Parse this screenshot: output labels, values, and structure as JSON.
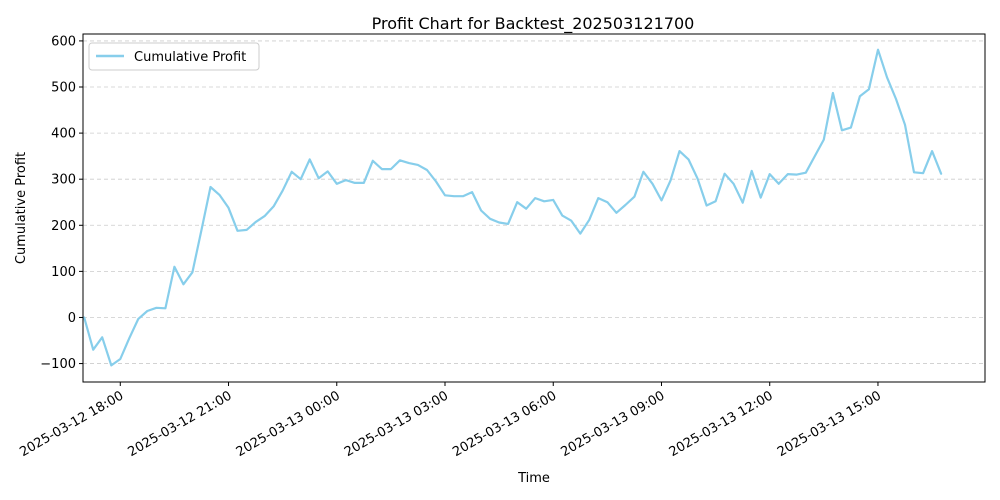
{
  "chart_data": {
    "type": "line",
    "title": "Profit Chart for Backtest_202503121700",
    "xlabel": "Time",
    "ylabel": "Cumulative Profit",
    "ylim": [
      -140,
      615
    ],
    "yticks": [
      -100,
      0,
      100,
      200,
      300,
      400,
      500,
      600
    ],
    "xlim": [
      "2025-03-12 16:58",
      "2025-03-13 17:58"
    ],
    "xticks": [
      "2025-03-12 18:00",
      "2025-03-12 21:00",
      "2025-03-13 00:00",
      "2025-03-13 03:00",
      "2025-03-13 06:00",
      "2025-03-13 09:00",
      "2025-03-13 12:00",
      "2025-03-13 15:00"
    ],
    "grid": "y-dashed",
    "legend_position": "top-left",
    "colors": {
      "line": "#87ceeb",
      "grid": "#cccccc",
      "axes": "#000000"
    },
    "series": [
      {
        "name": "Cumulative Profit",
        "x": [
          "2025-03-12 17:00",
          "2025-03-12 17:15",
          "2025-03-12 17:30",
          "2025-03-12 17:45",
          "2025-03-12 18:00",
          "2025-03-12 18:15",
          "2025-03-12 18:30",
          "2025-03-12 18:45",
          "2025-03-12 19:00",
          "2025-03-12 19:15",
          "2025-03-12 19:30",
          "2025-03-12 19:45",
          "2025-03-12 20:00",
          "2025-03-12 20:15",
          "2025-03-12 20:30",
          "2025-03-12 20:45",
          "2025-03-12 21:00",
          "2025-03-12 21:15",
          "2025-03-12 21:30",
          "2025-03-12 21:45",
          "2025-03-12 22:00",
          "2025-03-12 22:15",
          "2025-03-12 22:30",
          "2025-03-12 22:45",
          "2025-03-12 23:00",
          "2025-03-12 23:15",
          "2025-03-12 23:30",
          "2025-03-12 23:45",
          "2025-03-13 00:00",
          "2025-03-13 00:15",
          "2025-03-13 00:30",
          "2025-03-13 00:45",
          "2025-03-13 01:00",
          "2025-03-13 01:15",
          "2025-03-13 01:30",
          "2025-03-13 01:45",
          "2025-03-13 02:00",
          "2025-03-13 02:15",
          "2025-03-13 02:30",
          "2025-03-13 02:45",
          "2025-03-13 03:00",
          "2025-03-13 03:15",
          "2025-03-13 03:30",
          "2025-03-13 03:45",
          "2025-03-13 04:00",
          "2025-03-13 04:15",
          "2025-03-13 04:30",
          "2025-03-13 04:45",
          "2025-03-13 05:00",
          "2025-03-13 05:15",
          "2025-03-13 05:30",
          "2025-03-13 05:45",
          "2025-03-13 06:00",
          "2025-03-13 06:15",
          "2025-03-13 06:30",
          "2025-03-13 06:45",
          "2025-03-13 07:00",
          "2025-03-13 07:15",
          "2025-03-13 07:30",
          "2025-03-13 07:45",
          "2025-03-13 08:00",
          "2025-03-13 08:15",
          "2025-03-13 08:30",
          "2025-03-13 08:45",
          "2025-03-13 09:00",
          "2025-03-13 09:15",
          "2025-03-13 09:30",
          "2025-03-13 09:45",
          "2025-03-13 10:00",
          "2025-03-13 10:15",
          "2025-03-13 10:30",
          "2025-03-13 10:45",
          "2025-03-13 11:00",
          "2025-03-13 11:15",
          "2025-03-13 11:30",
          "2025-03-13 11:45",
          "2025-03-13 12:00",
          "2025-03-13 12:15",
          "2025-03-13 12:30",
          "2025-03-13 12:45",
          "2025-03-13 13:00",
          "2025-03-13 13:15",
          "2025-03-13 13:30",
          "2025-03-13 13:45",
          "2025-03-13 14:00",
          "2025-03-13 14:15",
          "2025-03-13 14:30",
          "2025-03-13 14:45",
          "2025-03-13 15:00",
          "2025-03-13 15:15",
          "2025-03-13 15:30",
          "2025-03-13 15:45",
          "2025-03-13 16:00",
          "2025-03-13 16:15",
          "2025-03-13 16:30",
          "2025-03-13 16:45"
        ],
        "y": [
          0,
          -70,
          -43,
          -104,
          -90,
          -45,
          -3,
          14,
          21,
          20,
          110,
          72,
          98,
          190,
          283,
          266,
          238,
          188,
          190,
          207,
          220,
          241,
          275,
          316,
          300,
          343,
          302,
          317,
          290,
          298,
          292,
          292,
          340,
          322,
          322,
          341,
          335,
          331,
          320,
          295,
          265,
          263,
          263,
          272,
          232,
          214,
          206,
          203,
          250,
          236,
          259,
          252,
          255,
          221,
          210,
          182,
          212,
          259,
          250,
          227,
          244,
          262,
          316,
          290,
          254,
          297,
          361,
          343,
          301,
          243,
          252,
          312,
          290,
          249,
          318,
          260,
          311,
          290,
          311,
          310,
          314,
          350,
          386,
          487,
          406,
          412,
          480,
          495,
          581,
          521,
          474,
          418,
          315,
          313,
          361,
          312
        ]
      }
    ]
  }
}
